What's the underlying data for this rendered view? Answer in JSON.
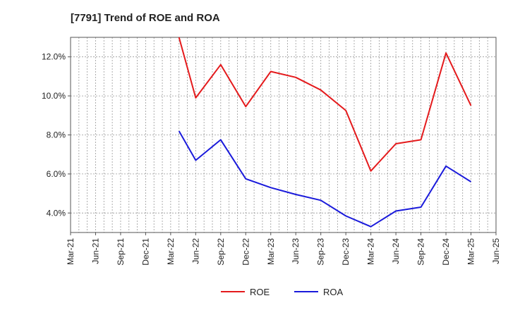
{
  "chart_data": {
    "type": "line",
    "title": "[7791]  Trend of ROE and ROA",
    "xlabel": "",
    "ylabel": "",
    "x_ticks": [
      "Mar-21",
      "Jun-21",
      "Sep-21",
      "Dec-21",
      "Mar-22",
      "Jun-22",
      "Sep-22",
      "Dec-22",
      "Mar-23",
      "Jun-23",
      "Sep-23",
      "Dec-23",
      "Mar-24",
      "Jun-24",
      "Sep-24",
      "Dec-24",
      "Mar-25",
      "Jun-25"
    ],
    "y_ticks": [
      "4.0%",
      "6.0%",
      "8.0%",
      "10.0%",
      "12.0%"
    ],
    "ylim": [
      3.0,
      13.0
    ],
    "grid": true,
    "legend_position": "bottom-center",
    "categories": [
      "Apr-22",
      "Jun-22",
      "Sep-22",
      "Dec-22",
      "Mar-23",
      "Jun-23",
      "Sep-23",
      "Dec-23",
      "Mar-24",
      "Jun-24",
      "Sep-24",
      "Dec-24",
      "Mar-25"
    ],
    "series": [
      {
        "name": "ROE",
        "color": "#e41a1c",
        "x": [
          "Apr-22",
          "Jun-22",
          "Sep-22",
          "Dec-22",
          "Mar-23",
          "Jun-23",
          "Sep-23",
          "Dec-23",
          "Mar-24",
          "Jun-24",
          "Sep-24",
          "Dec-24",
          "Mar-25"
        ],
        "values": [
          13.0,
          9.9,
          11.6,
          9.45,
          11.25,
          10.95,
          10.3,
          9.25,
          6.15,
          7.55,
          7.75,
          12.2,
          9.5
        ]
      },
      {
        "name": "ROA",
        "color": "#1a1adb",
        "x": [
          "Apr-22",
          "Jun-22",
          "Sep-22",
          "Dec-22",
          "Mar-23",
          "Jun-23",
          "Sep-23",
          "Dec-23",
          "Mar-24",
          "Jun-24",
          "Sep-24",
          "Dec-24",
          "Mar-25"
        ],
        "values": [
          8.2,
          6.7,
          7.75,
          5.75,
          5.3,
          4.95,
          4.65,
          3.85,
          3.3,
          4.1,
          4.3,
          6.4,
          5.6
        ]
      }
    ]
  }
}
